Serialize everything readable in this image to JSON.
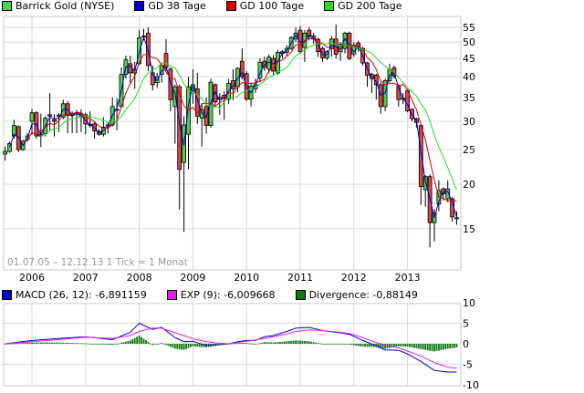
{
  "legend_main": [
    {
      "label": "Barrick Gold (NYSE)",
      "color": "#4fd04f"
    },
    {
      "label": "GD 38 Tage",
      "color": "#0000cc"
    },
    {
      "label": "GD 100 Tage",
      "color": "#dd0000"
    },
    {
      "label": "GD 200 Tage",
      "color": "#22dd22"
    }
  ],
  "legend_macd": [
    {
      "label": "MACD (26, 12): -6,891159",
      "color": "#0000cc"
    },
    {
      "label": "EXP (9): -6,009668",
      "color": "#e020e0"
    },
    {
      "label": "Divergence: -0,88149",
      "color": "#117711"
    }
  ],
  "range_text": "01.07.05 – 12.12.13   1 Tick = 1 Monat",
  "chart_data": [
    {
      "type": "candlestick",
      "title": "",
      "scale": "log",
      "ylim": [
        12.5,
        58
      ],
      "yticks": [
        15,
        20,
        25,
        30,
        35,
        40,
        45,
        50,
        55
      ],
      "xticks": [
        "2006",
        "2007",
        "2008",
        "2009",
        "2010",
        "2011",
        "2012",
        "2013"
      ],
      "first_month": "2005-07",
      "interval": "1 month",
      "colors": {
        "up": "#4fd04f",
        "down": "#d84848"
      },
      "grid": true,
      "legend": "top",
      "open": [
        24.3,
        24.7,
        27.3,
        29.0,
        25.0,
        26.7,
        30.0,
        31.7,
        27.3,
        27.7,
        31.3,
        30.3,
        31.0,
        30.8,
        33.6,
        31.2,
        31.4,
        31.5,
        31.3,
        29.4,
        29.5,
        28.1,
        27.6,
        29.2,
        29.3,
        32.4,
        33,
        40.6,
        43.5,
        41,
        43.5,
        51.8,
        53,
        41,
        38.5,
        40.6,
        46.5,
        42,
        33,
        37.5,
        23,
        27.6,
        36.5,
        37,
        30.6,
        33,
        29.2,
        38,
        34.5,
        35.5,
        34.6,
        39,
        37.5,
        44.2,
        40.8,
        34.6,
        37,
        39.7,
        44.2,
        42,
        45,
        41,
        47,
        46.8,
        48,
        51,
        54,
        48.3,
        54,
        52,
        50.9,
        48,
        45.2,
        48,
        51,
        47,
        48,
        53,
        46.3,
        49.7,
        48,
        43.7,
        40.6,
        40.4,
        38,
        33,
        39,
        42.4,
        37.6,
        34.8,
        36.6,
        32.4,
        30.5,
        29.2,
        19.3,
        21,
        15.6,
        17.6,
        19.4,
        18.2,
        18.2,
        16.1
      ],
      "high": [
        25.5,
        26.3,
        30.3,
        29.2,
        26.6,
        27.8,
        32.5,
        32,
        31.5,
        31,
        36,
        31.4,
        31.6,
        34.5,
        34.2,
        32,
        32.3,
        32.4,
        31.7,
        32,
        30,
        28.5,
        30.8,
        29.8,
        35,
        34.8,
        42.5,
        45.8,
        45.8,
        44,
        54,
        54.5,
        55,
        43,
        41,
        43.8,
        51,
        42.4,
        38,
        38,
        31,
        40,
        42,
        41,
        33.5,
        35,
        39.5,
        38.3,
        36,
        36.5,
        39.4,
        42,
        42.5,
        48,
        41.5,
        38.5,
        39.5,
        45,
        45.5,
        46.2,
        46,
        47.5,
        47.5,
        49,
        52,
        55,
        55.5,
        54,
        55,
        53,
        51.5,
        48.5,
        47.5,
        52,
        56,
        50,
        53.5,
        53.5,
        50,
        50.5,
        48.5,
        44,
        41,
        40.8,
        38.5,
        39.5,
        43.5,
        43,
        38,
        36,
        37,
        32.6,
        30.7,
        29.5,
        21.2,
        21.3,
        17,
        20.5,
        19.6,
        20.5,
        18.4,
        16.8
      ],
      "low": [
        23.3,
        24.5,
        26.8,
        24.6,
        24.8,
        26.3,
        27.5,
        26.8,
        25.4,
        27.2,
        28.3,
        27.2,
        28,
        30.4,
        27.8,
        27.8,
        27.8,
        28,
        27.6,
        28.8,
        26.8,
        27.3,
        27.2,
        27.7,
        29,
        28.3,
        32.8,
        39.5,
        38,
        37,
        43.2,
        50.5,
        41.5,
        36.6,
        37.2,
        38.5,
        41.5,
        32,
        26,
        17,
        14.7,
        22,
        33.6,
        29.5,
        25.5,
        27.7,
        28.8,
        32.8,
        31.3,
        30.3,
        33.5,
        34.4,
        36.2,
        39.3,
        34.2,
        33,
        36,
        38.6,
        41.5,
        41,
        40.5,
        40.5,
        45,
        45.8,
        47.5,
        50,
        46.5,
        44,
        50.5,
        49.5,
        45.5,
        44,
        44.5,
        45.5,
        45,
        44.3,
        46.5,
        44.5,
        45.5,
        47,
        43,
        37.5,
        36,
        34.5,
        31.5,
        32,
        38.5,
        39.5,
        33,
        33.5,
        31.8,
        30,
        28.8,
        17.5,
        17.3,
        13.3,
        13.8,
        16.8,
        18,
        17.8,
        15.7,
        15.4
      ],
      "close": [
        24.7,
        26.0,
        29.2,
        25.0,
        26.4,
        27.3,
        31.7,
        27.3,
        27.6,
        30.6,
        31.0,
        30.0,
        31.2,
        33.6,
        31.2,
        31.3,
        31.7,
        30.8,
        29.5,
        29.3,
        28.2,
        27.6,
        28.9,
        29.3,
        33,
        32.4,
        40.6,
        44.6,
        41,
        42,
        51.4,
        52,
        43,
        38,
        40,
        43,
        42.4,
        34.5,
        37.5,
        22,
        29.3,
        37.5,
        38,
        31,
        32.4,
        29.2,
        38.6,
        34,
        35,
        34.8,
        38.3,
        37,
        42.2,
        40,
        34.6,
        37.6,
        38,
        43.9,
        42.5,
        45.4,
        41.5,
        46.8,
        46.5,
        48,
        51.5,
        53,
        47,
        53,
        51.8,
        51,
        47,
        45.2,
        47,
        51,
        46.2,
        49.3,
        53,
        45,
        49,
        48,
        43.7,
        40.4,
        39.5,
        38,
        33,
        39,
        41.8,
        40.2,
        34.5,
        34.8,
        32.1,
        30.5,
        29.8,
        19.7,
        21,
        15.6,
        16.6,
        19.2,
        18.8,
        19.4,
        16.2,
        16.1
      ],
      "moving_averages": [
        {
          "name": "GD 38 Tage",
          "color": "#0000cc"
        },
        {
          "name": "GD 100 Tage",
          "color": "#dd0000"
        },
        {
          "name": "GD 200 Tage",
          "color": "#22dd22"
        }
      ]
    },
    {
      "type": "line",
      "title": "",
      "ylim": [
        -10,
        10
      ],
      "yticks": [
        10,
        5,
        0,
        -5,
        -10
      ],
      "x": [
        "2005-07",
        "2006-01",
        "2006-07",
        "2007-01",
        "2007-07",
        "2007-11",
        "2008-01",
        "2008-04",
        "2008-06",
        "2008-09",
        "2008-11",
        "2009-01",
        "2009-04",
        "2009-07",
        "2009-09",
        "2009-11",
        "2010-01",
        "2010-03",
        "2010-05",
        "2010-07",
        "2010-10",
        "2010-12",
        "2011-03",
        "2011-06",
        "2011-09",
        "2011-12",
        "2012-03",
        "2012-06",
        "2012-08",
        "2012-11",
        "2013-01",
        "2013-04",
        "2013-07",
        "2013-10",
        "2013-12"
      ],
      "series": [
        {
          "name": "MACD (26, 12)",
          "color": "#0000cc",
          "values": [
            0,
            0.8,
            1.3,
            1.7,
            1.0,
            2.8,
            5.0,
            3.5,
            4.0,
            1.5,
            0.5,
            0.6,
            -0.4,
            -0.2,
            0,
            0.5,
            0.8,
            0.8,
            1.7,
            2.0,
            3.0,
            3.8,
            4.0,
            3.2,
            2.8,
            2.3,
            0.8,
            -0.5,
            -1.5,
            -1.6,
            -2.5,
            -4.3,
            -6.5,
            -6.9,
            -6.9
          ]
        },
        {
          "name": "EXP (9)",
          "color": "#e020e0",
          "values": [
            0,
            0.5,
            1.0,
            1.6,
            1.3,
            2.0,
            3.0,
            3.8,
            3.8,
            2.7,
            2.0,
            1.2,
            0.5,
            0.1,
            0,
            0.3,
            0.6,
            0.9,
            1.3,
            1.7,
            2.4,
            3.0,
            3.4,
            3.2,
            2.9,
            2.5,
            1.5,
            0.3,
            -0.3,
            -1.0,
            -1.8,
            -3.0,
            -4.6,
            -5.7,
            -6.0
          ]
        },
        {
          "name": "Divergence",
          "color": "#117711",
          "type": "bar"
        }
      ],
      "grid": true,
      "legend": "top"
    }
  ]
}
